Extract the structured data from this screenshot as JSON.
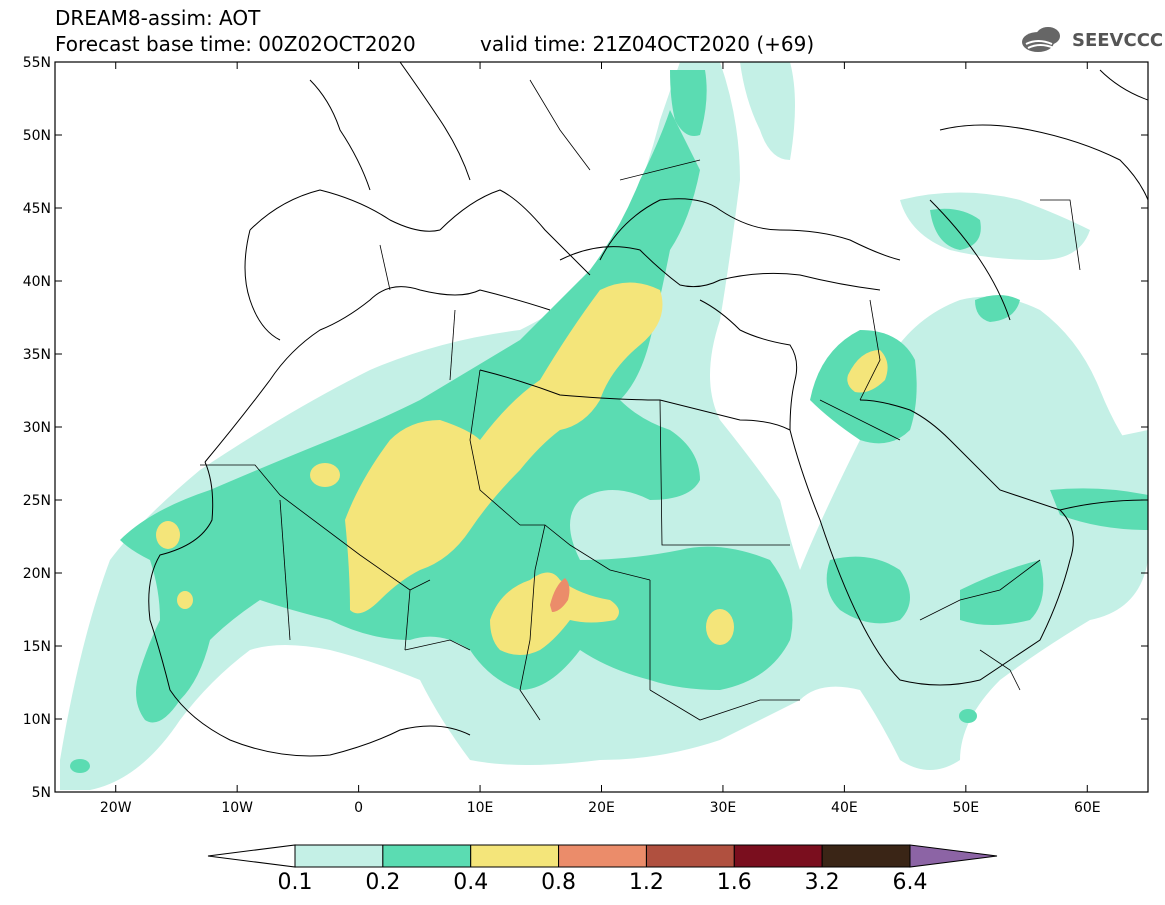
{
  "header": {
    "model": "DREAM8-assim: AOT",
    "base_time": "Forecast base time: 00Z02OCT2020",
    "valid_time": "valid time: 21Z04OCT2020 (+69)",
    "logo_text": "SEEVCCC"
  },
  "axes": {
    "lon_labels": [
      "20W",
      "10W",
      "0",
      "10E",
      "20E",
      "30E",
      "40E",
      "50E",
      "60E"
    ],
    "lat_labels": [
      "55N",
      "50N",
      "45N",
      "40N",
      "35N",
      "30N",
      "25N",
      "20N",
      "15N",
      "10N",
      "5N"
    ],
    "lon_range": [
      -25,
      65
    ],
    "lat_range": [
      5,
      55
    ]
  },
  "colorbar": {
    "labels": [
      "0.1",
      "0.2",
      "0.4",
      "0.8",
      "1.2",
      "1.6",
      "3.2",
      "6.4"
    ],
    "colors": [
      "#ffffff",
      "#c4f0e6",
      "#5bdcb2",
      "#f4e57a",
      "#eb8c6a",
      "#b0503f",
      "#7a0e1e",
      "#3a2516",
      "#8c64a5"
    ]
  },
  "legend_colors": {
    "aot_0_1_0_2": "#c4f0e6",
    "aot_0_2_0_4": "#5bdcb2",
    "aot_0_4_0_8": "#f4e57a",
    "aot_0_8_1_2": "#eb8c6a"
  }
}
